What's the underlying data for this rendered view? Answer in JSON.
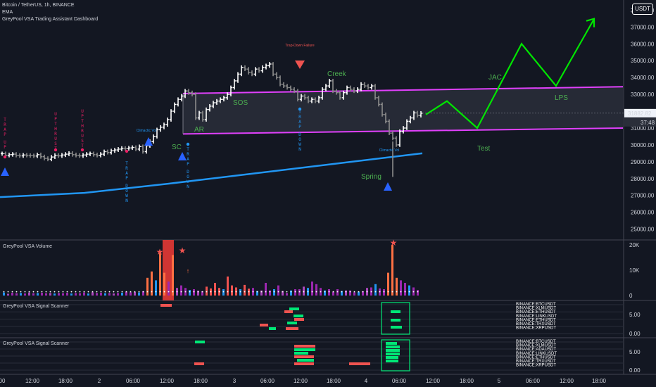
{
  "header": {
    "symbol_line": "Bitcoin / TetherUS, 1h, BINANCE",
    "indicator_1": "EMA",
    "indicator_2": "GreyPool VSA Trading Assistant Dashboard",
    "currency_button": "USDT"
  },
  "panes": {
    "volume_title": "GreyPool VSA Volume",
    "scanner1_title": "GreyPool VSA Signal Scanner",
    "scanner2_title": "GreyPool VSA Signal Scanner"
  },
  "chart_data": {
    "type": "candlestick",
    "price_axis_ticks": [
      "38000.00",
      "37000.00",
      "36000.00",
      "35000.00",
      "34000.00",
      "33000.00",
      "32000.00",
      "31000.00",
      "30000.00",
      "29000.00",
      "28000.00",
      "27000.00",
      "26000.00",
      "25000.00"
    ],
    "price_ylim": [
      24400,
      38600
    ],
    "current_price_label": "31882.82",
    "countdown_label": "37:48",
    "time_axis_labels": [
      "00",
      "12:00",
      "18:00",
      "2",
      "06:00",
      "12:00",
      "18:00",
      "3",
      "06:00",
      "12:00",
      "18:00",
      "4",
      "06:00",
      "12:00",
      "18:00",
      "5",
      "06:00",
      "12:00",
      "18:00"
    ],
    "price_bars": [
      29480,
      29380,
      29420,
      29450,
      29380,
      29350,
      29400,
      29380,
      29360,
      29340,
      29420,
      29300,
      29200,
      29150,
      29280,
      29380,
      29350,
      29400,
      29450,
      29500,
      29420,
      29380,
      29350,
      29400,
      29450,
      29480,
      29420,
      29380,
      29450,
      29600,
      29550,
      29650,
      29700,
      29750,
      29800,
      29780,
      29820,
      29850,
      29750,
      29900,
      29600,
      29950,
      30200,
      30500,
      30900,
      31050,
      31200,
      31500,
      32000,
      32400,
      32700,
      32900,
      33200,
      33100,
      33000,
      31600,
      31900,
      31500,
      32100,
      32300,
      32500,
      32600,
      32700,
      32800,
      33000,
      33400,
      33800,
      34200,
      34600,
      34500,
      34300,
      34200,
      34500,
      34400,
      34600,
      34700,
      34800,
      34200,
      34000,
      33600,
      33500,
      33400,
      33300,
      33200,
      32700,
      32900,
      32800,
      32600,
      32700,
      32600,
      32800,
      33300,
      33500,
      33800,
      33200,
      33100,
      32800,
      33100,
      33400,
      33300,
      33200,
      33300,
      33600,
      33500,
      33400,
      33500,
      32800,
      32400,
      31800,
      31400,
      30700,
      30400,
      30000,
      30800,
      31000,
      31400,
      31600,
      31900,
      31750,
      31880
    ],
    "ema_line": [
      [
        0,
        26900
      ],
      [
        120,
        27150
      ],
      [
        240,
        27700
      ],
      [
        360,
        28300
      ],
      [
        480,
        28900
      ],
      [
        600,
        29500
      ]
    ],
    "wyckoff_projection": [
      [
        605,
        31800
      ],
      [
        635,
        32600
      ],
      [
        678,
        31000
      ],
      [
        741,
        36000
      ],
      [
        790,
        33500
      ],
      [
        843,
        37400
      ]
    ],
    "range_top": [
      [
        260,
        33050
      ],
      [
        885,
        33450
      ]
    ],
    "range_bottom": [
      [
        260,
        30650
      ],
      [
        885,
        31000
      ]
    ],
    "wyckoff_labels": [
      "SC",
      "AR",
      "SOS",
      "Creek",
      "JAC",
      "LPS",
      "Test",
      "Spring"
    ],
    "signal_labels": [
      "TRAP UP",
      "UPTHRUST",
      "UPTHRUST",
      "TRAP DOWN",
      "Climactic Vol",
      "TRAP DOWN",
      "Trap-Down Failure",
      "TRAP DOWN",
      "Climactic Vol"
    ],
    "volume_axis_ticks": [
      "20K",
      "10K",
      "0"
    ],
    "volume_values": [
      1.2,
      0.7,
      1.1,
      0.9,
      1.0,
      0.8,
      1.2,
      0.9,
      1.0,
      1.1,
      0.9,
      1.0,
      0.8,
      1.0,
      0.9,
      1.1,
      0.8,
      1.0,
      0.9,
      1.2,
      0.8,
      1.3,
      1.0,
      1.1,
      0.9,
      1.0,
      0.8,
      1.0,
      1.1,
      1.5,
      1.3,
      1.4,
      1.2,
      1.7,
      7.0,
      9.5,
      6.0,
      17.5,
      9.0,
      5.5,
      16.0,
      3.0,
      4.0,
      3.0,
      2.2,
      2.5,
      1.9,
      1.7,
      3.5,
      2.8,
      5.0,
      3.0,
      2.5,
      7.5,
      4.0,
      3.2,
      2.5,
      4.2,
      2.7,
      3.0,
      1.8,
      2.0,
      5.0,
      2.0,
      2.5,
      4.0,
      1.8,
      1.0,
      2.0,
      2.5,
      2.5,
      3.5,
      3.0,
      5.5,
      4.5,
      3.0,
      2.0,
      2.5,
      1.5,
      2.5,
      1.8,
      2.0,
      2.0,
      1.3,
      1.5,
      1.7,
      3.0,
      3.2,
      4.5,
      2.8,
      2.5,
      9.0,
      20.0,
      7.0,
      6.0,
      5.0,
      4.0,
      3.2,
      2.2
    ],
    "scanner_ticks": [
      "5.00",
      "0.00"
    ],
    "scanner_symbols": [
      "BINANCE:BTCUSDT",
      "BINANCE:XLMUSDT",
      "BINANCE:ETHUSDT",
      "BINANCE:LINKUSDT",
      "BINANCE:ETHUSDT",
      "BINANCE:TRXUSDT",
      "BINANCE:XRPUSDT"
    ],
    "scanner2_symbols": [
      "BINANCE:BTCUSDT",
      "BINANCE:XLMUSDT",
      "BINANCE:ADAUSDT",
      "BINANCE:LINKUSDT",
      "BINANCE:ETHUSDT",
      "BINANCE:TRXUSDT",
      "BINANCE:XRPUSDT"
    ]
  }
}
